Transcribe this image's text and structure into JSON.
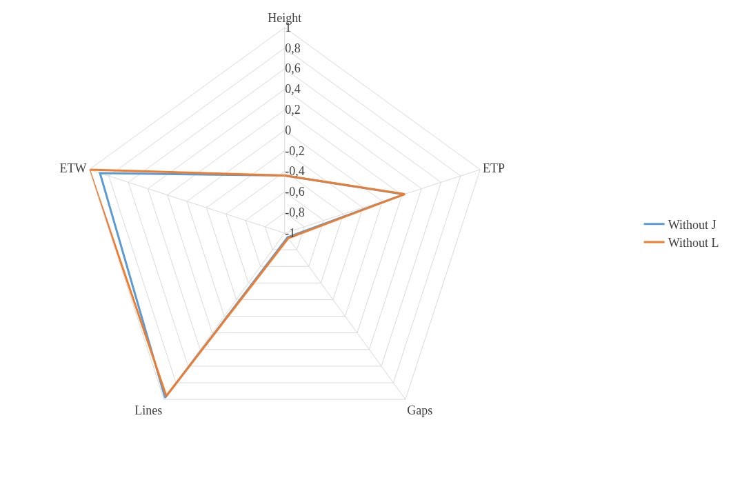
{
  "chart_data": {
    "type": "radar",
    "categories": [
      "Height",
      "ETP",
      "Gaps",
      "Lines",
      "ETW"
    ],
    "series": [
      {
        "name": "Without J",
        "color": "#5b9bd5",
        "values": [
          -0.44,
          0.22,
          -0.95,
          0.98,
          0.89
        ]
      },
      {
        "name": "Without L",
        "color": "#ed7d31",
        "values": [
          -0.44,
          0.23,
          -0.94,
          0.96,
          1.0
        ]
      }
    ],
    "ylim": [
      -1,
      1
    ],
    "yticks": [
      {
        "value": -1,
        "label": "-1"
      },
      {
        "value": -0.8,
        "label": "-0,8"
      },
      {
        "value": -0.6,
        "label": "-0,6"
      },
      {
        "value": -0.4,
        "label": "-0,4"
      },
      {
        "value": -0.2,
        "label": "-0,2"
      },
      {
        "value": 0,
        "label": "0"
      },
      {
        "value": 0.2,
        "label": "0,2"
      },
      {
        "value": 0.4,
        "label": "0,4"
      },
      {
        "value": 0.6,
        "label": "0,6"
      },
      {
        "value": 0.8,
        "label": "0,8"
      },
      {
        "value": 1,
        "label": "1"
      }
    ],
    "grid": true,
    "legend": "right",
    "marker": "none",
    "line_style": "solid"
  }
}
